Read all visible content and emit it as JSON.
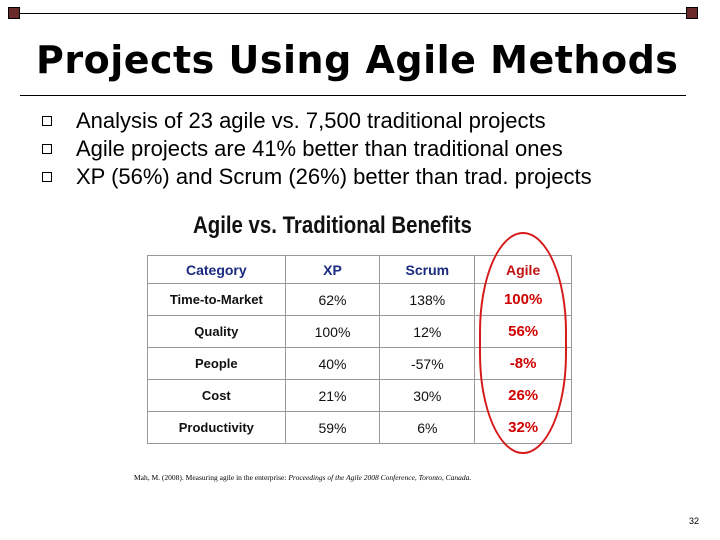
{
  "slide": {
    "title": "Projects Using Agile Methods",
    "bullets": [
      "Analysis of 23 agile vs. 7,500 traditional projects",
      "Agile projects are 41% better than traditional ones",
      "XP (56%) and Scrum (26%) better than trad. projects"
    ],
    "page_number": "32"
  },
  "table": {
    "title": "Agile vs. Traditional Benefits",
    "headers": [
      "Category",
      "XP",
      "Scrum",
      "Agile"
    ],
    "rows": [
      [
        "Time-to-Market",
        "62%",
        "138%",
        "100%"
      ],
      [
        "Quality",
        "100%",
        "12%",
        "56%"
      ],
      [
        "People",
        "40%",
        "-57%",
        "-8%"
      ],
      [
        "Cost",
        "21%",
        "30%",
        "26%"
      ],
      [
        "Productivity",
        "59%",
        "6%",
        "32%"
      ]
    ]
  },
  "citation": {
    "prefix": "Mah, M. (2008). Measuring agile in the enterprise: ",
    "italic": "Proceedings of the Agile 2008 Conference, Toronto, Canada."
  },
  "colors": {
    "accent_dark_red": "#6b2a2a",
    "header_blue": "#1a2a80",
    "agile_red": "#d00000",
    "ring_red": "#d61a1a"
  }
}
